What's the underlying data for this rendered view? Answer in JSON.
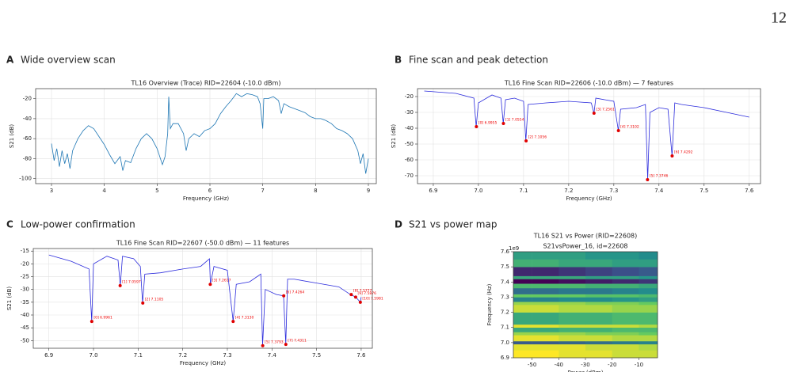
{
  "page_number": "12",
  "chart_data": [
    {
      "type": "line",
      "panel_letter": "A",
      "panel_title": "Wide overview scan",
      "title": "TL16 Overview (Trace)  RID=22604  (-10.0 dBm)",
      "x_label": "Frequency (GHz)",
      "y_label": "S21 (dB)",
      "xlim": [
        2.7,
        9.15
      ],
      "ylim": [
        -105,
        -10
      ],
      "xticks": [
        3,
        4,
        5,
        6,
        7,
        8,
        9
      ],
      "yticks": [
        -20,
        -40,
        -60,
        -80,
        -100
      ],
      "grid": true,
      "series": [
        {
          "color": "#1f77b4",
          "x": [
            3.0,
            3.05,
            3.1,
            3.15,
            3.2,
            3.25,
            3.3,
            3.35,
            3.4,
            3.5,
            3.6,
            3.7,
            3.8,
            3.9,
            4.0,
            4.1,
            4.2,
            4.3,
            4.35,
            4.4,
            4.5,
            4.6,
            4.7,
            4.8,
            4.9,
            5.0,
            5.1,
            5.15,
            5.2,
            5.22,
            5.25,
            5.3,
            5.4,
            5.5,
            5.55,
            5.6,
            5.7,
            5.8,
            5.9,
            6.0,
            6.1,
            6.2,
            6.3,
            6.4,
            6.5,
            6.6,
            6.7,
            6.8,
            6.9,
            6.95,
            7.0,
            7.02,
            7.1,
            7.2,
            7.3,
            7.35,
            7.4,
            7.5,
            7.6,
            7.7,
            7.8,
            7.9,
            8.0,
            8.1,
            8.2,
            8.3,
            8.4,
            8.5,
            8.6,
            8.7,
            8.8,
            8.85,
            8.9,
            8.95,
            9.0
          ],
          "values": [
            -65,
            -82,
            -70,
            -88,
            -72,
            -85,
            -75,
            -90,
            -72,
            -60,
            -52,
            -47,
            -50,
            -58,
            -66,
            -76,
            -85,
            -78,
            -92,
            -82,
            -84,
            -70,
            -60,
            -55,
            -60,
            -70,
            -86,
            -78,
            -55,
            -18,
            -50,
            -45,
            -45,
            -55,
            -72,
            -60,
            -55,
            -58,
            -52,
            -50,
            -45,
            -35,
            -28,
            -22,
            -15,
            -18,
            -15,
            -16,
            -18,
            -25,
            -50,
            -20,
            -20,
            -18,
            -22,
            -35,
            -25,
            -28,
            -30,
            -32,
            -34,
            -38,
            -40,
            -40,
            -42,
            -45,
            -50,
            -52,
            -55,
            -60,
            -72,
            -85,
            -75,
            -95,
            -80
          ]
        }
      ]
    },
    {
      "type": "line",
      "panel_letter": "B",
      "panel_title": "Fine scan and peak detection",
      "title": "TL16 Fine Scan RID=22606  (-10.0 dBm)  —  7 features",
      "x_label": "Frequency (GHz)",
      "y_label": "S21 (dB)",
      "xlim": [
        6.865,
        7.625
      ],
      "ylim": [
        -75,
        -15
      ],
      "xticks": [
        6.9,
        {
          "value": 7,
          "label": "7.0"
        },
        7.1,
        7.2,
        7.3,
        7.4,
        7.5,
        7.6
      ],
      "yticks": [
        -20,
        -30,
        -40,
        -50,
        -60,
        -70
      ],
      "grid": true,
      "series": [
        {
          "color": "#2b2bdc",
          "x": [
            6.88,
            6.95,
            6.99,
            6.995,
            7.0,
            7.03,
            7.05,
            7.055,
            7.06,
            7.08,
            7.1,
            7.105,
            7.11,
            7.15,
            7.2,
            7.25,
            7.256,
            7.26,
            7.3,
            7.31,
            7.315,
            7.35,
            7.37,
            7.375,
            7.38,
            7.4,
            7.42,
            7.429,
            7.435,
            7.45,
            7.5,
            7.55,
            7.6
          ],
          "values": [
            -16.5,
            -18,
            -21,
            -39,
            -24,
            -19,
            -21,
            -37,
            -22,
            -21,
            -23,
            -48,
            -25,
            -24,
            -23,
            -24,
            -30.5,
            -21,
            -23,
            -41.5,
            -28,
            -27,
            -25,
            -72.5,
            -30,
            -27,
            -28,
            -57.5,
            -24,
            -25,
            -27,
            -30,
            -33
          ]
        }
      ],
      "peaks": {
        "color": "#e00000",
        "x": [
          6.9955,
          7.0554,
          7.1056,
          7.2561,
          7.3102,
          7.3746,
          7.4292
        ],
        "values": [
          -39,
          -37,
          -48,
          -30.5,
          -41.5,
          -72.5,
          -57.5
        ],
        "labels": [
          "[0] 6.9955",
          "[1] 7.0554",
          "[2] 7.1056",
          "[3] 7.2561",
          "[4] 7.3102",
          "[5] 7.3746",
          "[6] 7.4292"
        ]
      }
    },
    {
      "type": "line",
      "panel_letter": "C",
      "panel_title": "Low-power confirmation",
      "title": "TL16 Fine Scan RID=22607  (-50.0 dBm)  —  11 features",
      "x_label": "Frequency (GHz)",
      "y_label": "S21 (dB)",
      "xlim": [
        6.865,
        7.625
      ],
      "ylim": [
        -53,
        -14
      ],
      "xticks": [
        6.9,
        {
          "value": 7,
          "label": "7.0"
        },
        7.1,
        7.2,
        7.3,
        7.4,
        7.5,
        7.6
      ],
      "yticks": [
        -15,
        -20,
        -25,
        -30,
        -35,
        -40,
        -45,
        -50
      ],
      "grid": true,
      "series": [
        {
          "color": "#2b2bdc",
          "x": [
            6.9,
            6.95,
            6.99,
            6.996,
            7.0,
            7.03,
            7.055,
            7.06,
            7.065,
            7.09,
            7.105,
            7.11,
            7.115,
            7.15,
            7.2,
            7.24,
            7.26,
            7.262,
            7.27,
            7.3,
            7.313,
            7.32,
            7.35,
            7.375,
            7.379,
            7.385,
            7.41,
            7.426,
            7.431,
            7.435,
            7.45,
            7.5,
            7.55,
            7.576,
            7.588,
            7.598,
            7.6
          ],
          "values": [
            -16.5,
            -19,
            -22,
            -42.5,
            -20,
            -17,
            -18.5,
            -28.5,
            -17,
            -18,
            -21,
            -35.3,
            -24,
            -23.5,
            -22,
            -21,
            -18,
            -28,
            -21,
            -22.5,
            -42.5,
            -28,
            -27,
            -24,
            -52,
            -30,
            -32,
            -32.5,
            -51.5,
            -26,
            -26,
            -27.5,
            -29,
            -32,
            -33,
            -35,
            -33
          ]
        }
      ],
      "peaks": {
        "color": "#e00000",
        "x": [
          6.9961,
          7.0597,
          7.1105,
          7.2617,
          7.313,
          7.3793,
          7.4264,
          7.4311,
          7.5777,
          7.5876,
          7.5981
        ],
        "values": [
          -42.5,
          -28.5,
          -35.3,
          -28,
          -42.5,
          -52,
          -32.5,
          -51.5,
          -32,
          -33,
          -35
        ],
        "labels": [
          "[0] 6.9961",
          "[1] 7.0597",
          "[2] 7.1105",
          "[3] 7.2617",
          "[4] 7.3130",
          "[5] 7.3793",
          "[6] 7.4264",
          "[7] 7.4311",
          "[8] 7.5777",
          "[9] 7.5876",
          "[10] 7.5981"
        ]
      }
    },
    {
      "type": "heatmap",
      "panel_letter": "D",
      "panel_title": "S21 vs power map",
      "title": "TL16 S21 vs Power  (RID=22608)",
      "subtitle": "S21vsPower_16, id=22608",
      "x_label": "Power (dBm)",
      "y_label": "Frequency (Hz)",
      "y_offset_label": "1e9",
      "xlim": [
        -57,
        -3
      ],
      "ylim": [
        6.9,
        7.6
      ],
      "xticks": [
        -50,
        -40,
        -30,
        -20,
        -10
      ],
      "yticks": [
        6.9,
        {
          "value": 7,
          "label": "7.0"
        },
        7.1,
        7.2,
        7.3,
        7.4,
        7.5,
        7.6
      ],
      "xbins": [
        -57,
        -50,
        -40,
        -30,
        -20,
        -10,
        -3
      ],
      "ybins": [
        6.9,
        6.95,
        6.99,
        7.01,
        7.05,
        7.07,
        7.1,
        7.12,
        7.2,
        7.25,
        7.27,
        7.3,
        7.32,
        7.36,
        7.39,
        7.42,
        7.44,
        7.5,
        7.55,
        7.6
      ],
      "z": [
        [
          -20,
          -20,
          -21,
          -21,
          -22,
          -22
        ],
        [
          -21,
          -21,
          -21,
          -22,
          -22,
          -23
        ],
        [
          -38,
          -38,
          -37,
          -36,
          -35,
          -34
        ],
        [
          -21,
          -21,
          -22,
          -22,
          -23,
          -23
        ],
        [
          -24,
          -24,
          -24,
          -25,
          -25,
          -26
        ],
        [
          -30,
          -30,
          -29,
          -29,
          -28,
          -28
        ],
        [
          -21,
          -21,
          -22,
          -22,
          -22,
          -23
        ],
        [
          -30,
          -30,
          -29,
          -29,
          -28,
          -28
        ],
        [
          -22,
          -22,
          -23,
          -23,
          -24,
          -24
        ],
        [
          -24,
          -24,
          -24,
          -25,
          -25,
          -26
        ],
        [
          -34,
          -34,
          -33,
          -33,
          -32,
          -31
        ],
        [
          -26,
          -26,
          -26,
          -27,
          -27,
          -28
        ],
        [
          -36,
          -36,
          -35,
          -35,
          -34,
          -33
        ],
        [
          -28,
          -28,
          -28,
          -29,
          -29,
          -30
        ],
        [
          -45,
          -45,
          -44,
          -43,
          -42,
          -41
        ],
        [
          -30,
          -30,
          -30,
          -31,
          -31,
          -32
        ],
        [
          -42,
          -42,
          -41,
          -40,
          -39,
          -38
        ],
        [
          -29,
          -29,
          -30,
          -30,
          -31,
          -31
        ],
        [
          -31,
          -31,
          -31,
          -32,
          -32,
          -33
        ]
      ],
      "colormap": "viridis"
    }
  ]
}
